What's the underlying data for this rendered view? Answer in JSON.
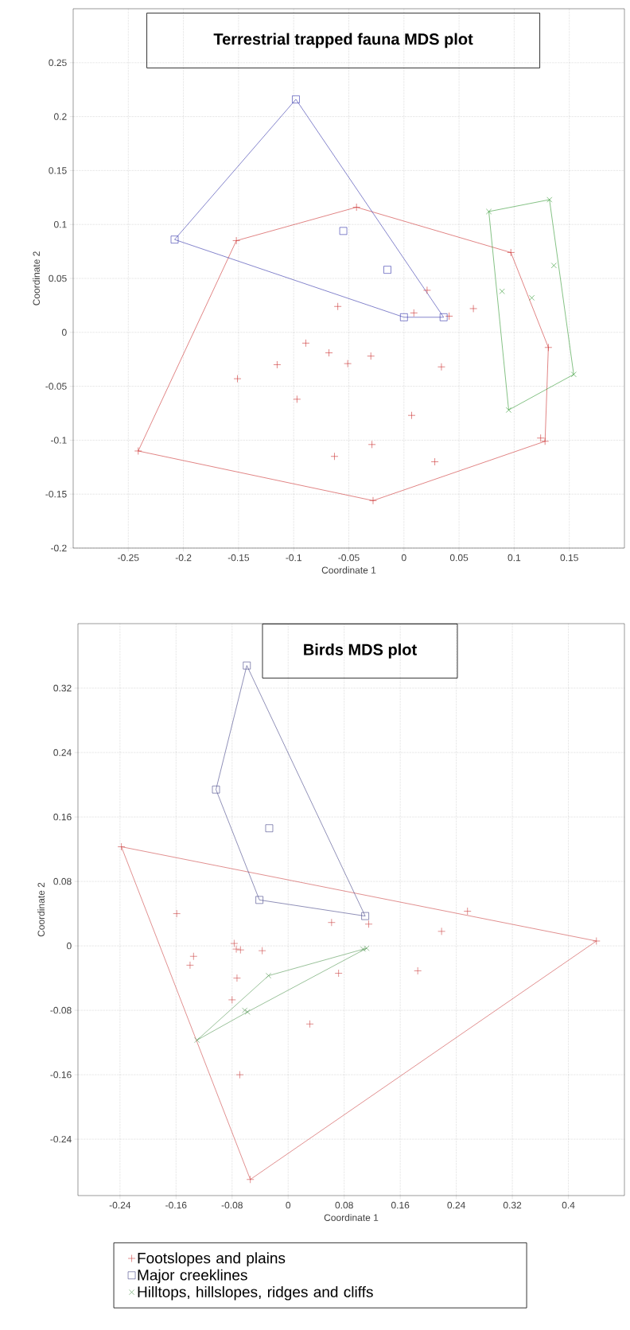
{
  "chart_data": [
    {
      "type": "scatter",
      "title": "Terrestrial trapped fauna MDS plot",
      "xlabel": "Coordinate 1",
      "ylabel": "Coordinate 2",
      "xlim": [
        -0.3,
        0.2
      ],
      "ylim": [
        -0.2,
        0.3
      ],
      "xticks": [
        -0.25,
        -0.2,
        -0.15,
        -0.1,
        -0.05,
        0,
        0.05,
        0.1,
        0.15
      ],
      "yticks": [
        -0.2,
        -0.15,
        -0.1,
        -0.05,
        0,
        0.05,
        0.1,
        0.15,
        0.2,
        0.25
      ],
      "grid": true,
      "series": [
        {
          "type": "line",
          "color": "#cc3333",
          "marker": "none",
          "x": [
            -0.241,
            -0.152,
            -0.043,
            0.097,
            0.131
          ],
          "values": [
            -0.11,
            0.085,
            0.116,
            0.074,
            -0.014
          ]
        },
        {
          "type": "line",
          "color": "#cc3333",
          "marker": "none",
          "x": [
            -0.241,
            -0.028,
            0.128,
            0.131
          ],
          "values": [
            -0.11,
            -0.156,
            -0.101,
            -0.014
          ]
        },
        {
          "type": "line",
          "color": "#3333aa",
          "marker": "none",
          "x": [
            -0.208,
            -0.098,
            0.036
          ],
          "values": [
            0.086,
            0.216,
            0.014
          ]
        },
        {
          "type": "line",
          "color": "#3333aa",
          "marker": "none",
          "x": [
            -0.208,
            0.0,
            0.036
          ],
          "values": [
            0.086,
            0.014,
            0.014
          ]
        },
        {
          "type": "line",
          "color": "#339933",
          "marker": "none",
          "x": [
            0.077,
            0.132,
            0.154
          ],
          "values": [
            0.112,
            0.123,
            -0.039
          ]
        },
        {
          "type": "line",
          "color": "#339933",
          "marker": "none",
          "x": [
            0.077,
            0.095,
            0.154
          ],
          "values": [
            0.112,
            -0.072,
            -0.039
          ]
        },
        {
          "color": "#cc3333",
          "marker": "plus",
          "x": [
            -0.241,
            -0.152,
            -0.043,
            0.097,
            0.131,
            0.128,
            0.124,
            -0.028,
            0.021,
            -0.06,
            0.009,
            0.041,
            0.063,
            -0.089,
            -0.068,
            -0.115,
            -0.051,
            -0.03,
            0.034,
            -0.151,
            -0.097,
            0.007,
            -0.029,
            -0.063,
            0.028
          ],
          "values": [
            -0.11,
            0.085,
            0.116,
            0.074,
            -0.014,
            -0.101,
            -0.098,
            -0.156,
            0.039,
            0.024,
            0.018,
            0.015,
            0.022,
            -0.01,
            -0.019,
            -0.03,
            -0.029,
            -0.022,
            -0.032,
            -0.043,
            -0.062,
            -0.077,
            -0.104,
            -0.115,
            -0.12
          ]
        },
        {
          "color": "#3333aa",
          "marker": "square",
          "x": [
            -0.098,
            -0.208,
            -0.055,
            -0.015,
            0.0,
            0.036
          ],
          "values": [
            0.216,
            0.086,
            0.094,
            0.058,
            0.014,
            0.014
          ]
        },
        {
          "color": "#339933",
          "marker": "cross",
          "x": [
            0.077,
            0.132,
            0.136,
            0.089,
            0.116,
            0.154,
            0.095
          ],
          "values": [
            0.112,
            0.123,
            0.062,
            0.038,
            0.032,
            -0.039,
            -0.072
          ]
        }
      ]
    },
    {
      "type": "scatter",
      "title": "Birds MDS plot",
      "xlabel": "Coordinate 1",
      "ylabel": "Coordinate 2",
      "xlim": [
        -0.3,
        0.48
      ],
      "ylim": [
        -0.31,
        0.4
      ],
      "xticks": [
        -0.24,
        -0.16,
        -0.08,
        0,
        0.08,
        0.16,
        0.24,
        0.32,
        0.4
      ],
      "yticks": [
        -0.24,
        -0.16,
        -0.08,
        0,
        0.08,
        0.16,
        0.24,
        0.32
      ],
      "grid": true,
      "legend": "bottom",
      "series": [
        {
          "type": "line",
          "color": "#cc4444",
          "marker": "none",
          "x": [
            -0.238,
            0.44
          ],
          "values": [
            0.123,
            0.006
          ]
        },
        {
          "type": "line",
          "color": "#cc4444",
          "marker": "none",
          "x": [
            -0.238,
            -0.054,
            0.44
          ],
          "values": [
            0.123,
            -0.29,
            0.006
          ]
        },
        {
          "type": "line",
          "color": "#444488",
          "marker": "none",
          "x": [
            -0.103,
            -0.059,
            0.11
          ],
          "values": [
            0.194,
            0.348,
            0.037
          ]
        },
        {
          "type": "line",
          "color": "#444488",
          "marker": "none",
          "x": [
            -0.103,
            -0.041,
            0.11
          ],
          "values": [
            0.194,
            0.057,
            0.037
          ]
        },
        {
          "type": "line",
          "color": "#559955",
          "marker": "none",
          "x": [
            -0.13,
            -0.028,
            0.112
          ],
          "values": [
            -0.117,
            -0.037,
            -0.003
          ]
        },
        {
          "type": "line",
          "color": "#559955",
          "marker": "none",
          "x": [
            -0.13,
            -0.058,
            0.112
          ],
          "values": [
            -0.117,
            -0.082,
            -0.003
          ]
        },
        {
          "name": "Footslopes and plains",
          "color": "#cc4444",
          "marker": "plus",
          "x": [
            -0.238,
            0.44,
            -0.054,
            -0.159,
            -0.135,
            -0.14,
            -0.077,
            -0.074,
            -0.068,
            -0.037,
            -0.073,
            -0.08,
            -0.069,
            0.031,
            0.062,
            0.072,
            0.115,
            0.185,
            0.219,
            0.256
          ],
          "values": [
            0.123,
            0.006,
            -0.29,
            0.04,
            -0.013,
            -0.024,
            0.003,
            -0.004,
            -0.005,
            -0.006,
            -0.04,
            -0.067,
            -0.16,
            -0.097,
            0.029,
            -0.034,
            0.027,
            -0.031,
            0.018,
            0.043
          ]
        },
        {
          "name": "Major creeklines",
          "color": "#444488",
          "marker": "square",
          "x": [
            -0.059,
            -0.103,
            -0.027,
            -0.041,
            0.11
          ],
          "values": [
            0.348,
            0.194,
            0.146,
            0.057,
            0.037
          ]
        },
        {
          "name": "Hilltops, hillslopes, ridges and cliffs",
          "color": "#559955",
          "marker": "cross",
          "x": [
            0.112,
            0.107,
            -0.028,
            -0.062,
            -0.058,
            -0.13
          ],
          "values": [
            -0.003,
            -0.004,
            -0.037,
            -0.08,
            -0.082,
            -0.117
          ]
        }
      ]
    }
  ]
}
